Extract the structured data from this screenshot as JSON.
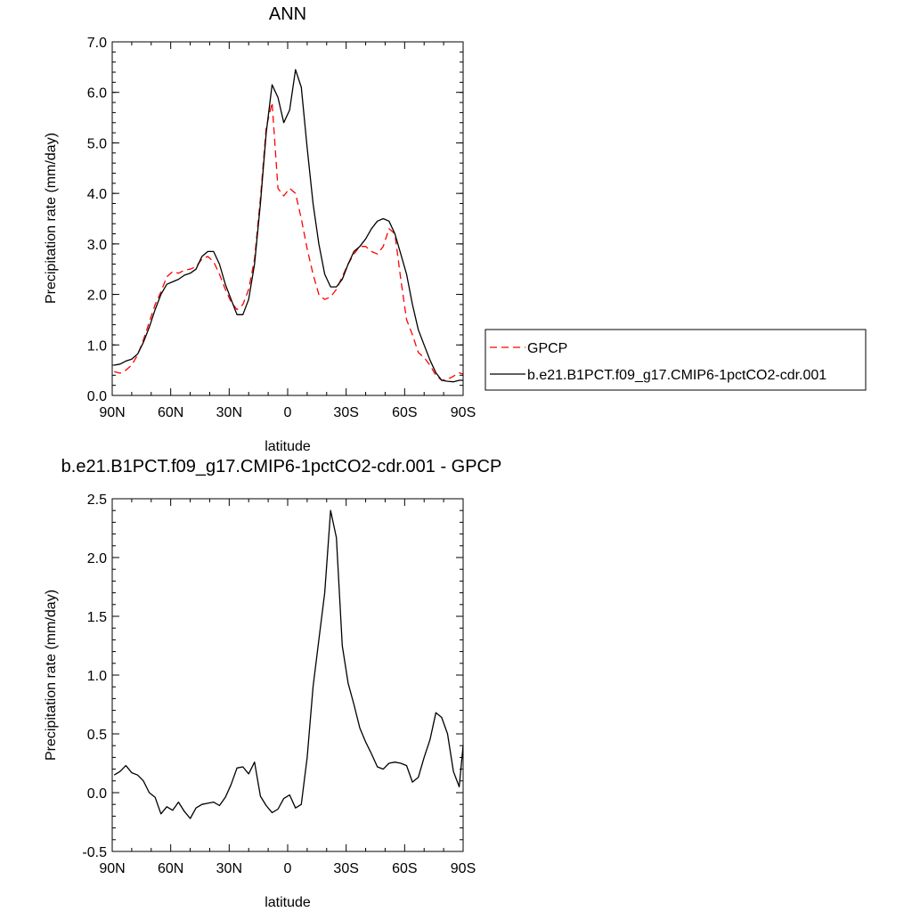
{
  "chart_data": [
    {
      "type": "line",
      "title": "ANN",
      "xlabel": "latitude",
      "ylabel": "Precipitation rate (mm/day)",
      "xlim": [
        90,
        -90
      ],
      "ylim": [
        0,
        7
      ],
      "xticks": [
        90,
        60,
        30,
        0,
        -30,
        -60,
        -90
      ],
      "xticklabels": [
        "90N",
        "60N",
        "30N",
        "0",
        "30S",
        "60S",
        "90S"
      ],
      "yticks": [
        0,
        1,
        2,
        3,
        4,
        5,
        6,
        7
      ],
      "yticklabels": [
        "0.0",
        "1.0",
        "2.0",
        "3.0",
        "4.0",
        "5.0",
        "6.0",
        "7.0"
      ],
      "legend": "right",
      "series": [
        {
          "name": "GPCP",
          "color": "#ff0000",
          "dash": "dashed",
          "x": [
            89,
            86,
            83,
            80,
            77,
            74,
            71,
            68,
            65,
            62,
            59,
            56,
            53,
            50,
            47,
            44,
            41,
            38,
            35,
            32,
            29,
            26,
            23,
            20,
            17,
            14,
            11,
            8,
            5,
            2,
            -1,
            -4,
            -7,
            -10,
            -13,
            -16,
            -19,
            -22,
            -25,
            -28,
            -31,
            -34,
            -37,
            -40,
            -43,
            -46,
            -49,
            -52,
            -55,
            -58,
            -61,
            -64,
            -67,
            -70,
            -73,
            -76,
            -79,
            -82,
            -85,
            -88,
            -90
          ],
          "y": [
            0.47,
            0.44,
            0.5,
            0.6,
            0.8,
            1.1,
            1.45,
            1.8,
            2.05,
            2.35,
            2.45,
            2.42,
            2.48,
            2.5,
            2.55,
            2.7,
            2.75,
            2.65,
            2.4,
            2.1,
            1.85,
            1.7,
            1.8,
            2.1,
            2.7,
            3.9,
            5.3,
            5.8,
            4.1,
            3.95,
            4.1,
            4.0,
            3.5,
            2.9,
            2.4,
            2.0,
            1.9,
            1.95,
            2.1,
            2.35,
            2.6,
            2.8,
            2.95,
            2.95,
            2.85,
            2.8,
            2.95,
            3.3,
            3.2,
            2.3,
            1.5,
            1.2,
            0.85,
            0.75,
            0.6,
            0.4,
            0.3,
            0.32,
            0.38,
            0.45,
            0.42
          ]
        },
        {
          "name": "b.e21.B1PCT.f09_g17.CMIP6-1pctCO2-cdr.001",
          "color": "#000000",
          "dash": "solid",
          "x": [
            89,
            86,
            83,
            80,
            77,
            74,
            71,
            68,
            65,
            62,
            59,
            56,
            53,
            50,
            47,
            44,
            41,
            38,
            35,
            32,
            29,
            26,
            23,
            20,
            17,
            14,
            11,
            8,
            5,
            2,
            -1,
            -4,
            -7,
            -10,
            -13,
            -16,
            -19,
            -22,
            -25,
            -28,
            -31,
            -34,
            -37,
            -40,
            -43,
            -46,
            -49,
            -52,
            -55,
            -58,
            -61,
            -64,
            -67,
            -70,
            -73,
            -76,
            -79,
            -82,
            -85,
            -88,
            -90
          ],
          "y": [
            0.6,
            0.62,
            0.68,
            0.72,
            0.82,
            1.05,
            1.35,
            1.7,
            2.0,
            2.2,
            2.25,
            2.3,
            2.38,
            2.42,
            2.5,
            2.75,
            2.85,
            2.85,
            2.6,
            2.2,
            1.9,
            1.6,
            1.6,
            1.9,
            2.6,
            3.8,
            5.2,
            6.15,
            5.9,
            5.4,
            5.65,
            6.45,
            6.1,
            4.9,
            3.8,
            3.0,
            2.4,
            2.15,
            2.15,
            2.3,
            2.6,
            2.85,
            2.95,
            3.1,
            3.3,
            3.45,
            3.5,
            3.45,
            3.2,
            2.8,
            2.4,
            1.8,
            1.3,
            1.0,
            0.7,
            0.45,
            0.3,
            0.28,
            0.27,
            0.3,
            0.3
          ]
        }
      ]
    },
    {
      "type": "line",
      "title": "b.e21.B1PCT.f09_g17.CMIP6-1pctCO2-cdr.001 - GPCP",
      "xlabel": "latitude",
      "ylabel": "Precipitation rate (mm/day)",
      "xlim": [
        90,
        -90
      ],
      "ylim": [
        -0.5,
        2.5
      ],
      "xticks": [
        90,
        60,
        30,
        0,
        -30,
        -60,
        -90
      ],
      "xticklabels": [
        "90N",
        "60N",
        "30N",
        "0",
        "30S",
        "60S",
        "90S"
      ],
      "yticks": [
        -0.5,
        0,
        0.5,
        1,
        1.5,
        2,
        2.5
      ],
      "yticklabels": [
        "-0.5",
        "0.0",
        "0.5",
        "1.0",
        "1.5",
        "2.0",
        "2.5"
      ],
      "series": [
        {
          "color": "#000000",
          "dash": "solid",
          "x": [
            89,
            86,
            83,
            80,
            77,
            74,
            71,
            68,
            65,
            62,
            59,
            56,
            53,
            50,
            47,
            44,
            41,
            38,
            35,
            32,
            29,
            26,
            23,
            20,
            17,
            14,
            11,
            8,
            5,
            2,
            -1,
            -4,
            -7,
            -10,
            -13,
            -16,
            -19,
            -22,
            -25,
            -28,
            -31,
            -34,
            -37,
            -40,
            -43,
            -46,
            -49,
            -52,
            -55,
            -58,
            -61,
            -64,
            -67,
            -70,
            -73,
            -76,
            -79,
            -82,
            -85,
            -88,
            -90
          ],
          "y": [
            0.15,
            0.18,
            0.23,
            0.17,
            0.15,
            0.1,
            0.0,
            -0.04,
            -0.18,
            -0.12,
            -0.15,
            -0.08,
            -0.16,
            -0.22,
            -0.13,
            -0.1,
            -0.09,
            -0.08,
            -0.11,
            -0.04,
            0.07,
            0.21,
            0.22,
            0.16,
            0.26,
            -0.03,
            -0.11,
            -0.17,
            -0.14,
            -0.05,
            -0.02,
            -0.13,
            -0.1,
            0.3,
            0.9,
            1.3,
            1.7,
            2.4,
            2.17,
            1.25,
            0.93,
            0.75,
            0.55,
            0.43,
            0.33,
            0.22,
            0.2,
            0.25,
            0.26,
            0.25,
            0.23,
            0.09,
            0.13,
            0.3,
            0.45,
            0.68,
            0.64,
            0.5,
            0.18,
            0.05,
            0.4
          ]
        }
      ]
    }
  ]
}
